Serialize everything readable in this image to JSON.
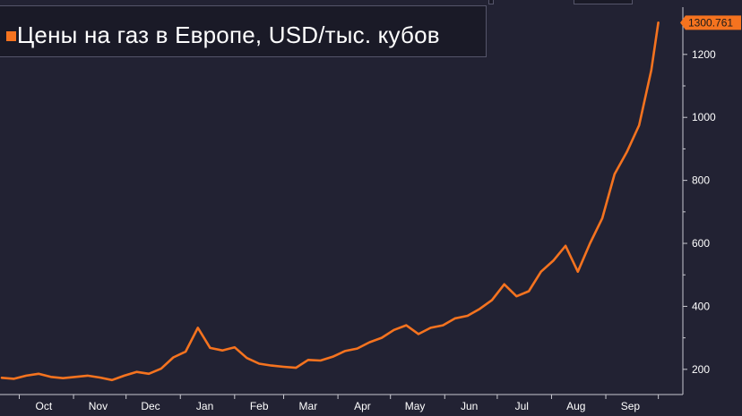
{
  "colors": {
    "background": "#222233",
    "series": "#f5731f",
    "axis": "#c8c8d0",
    "tick_text": "#ffffff",
    "last_label_bg": "#f5731f",
    "last_label_text": "#1a1a1a"
  },
  "chart_data": {
    "type": "line",
    "title": "",
    "legend": {
      "placement": "top-left",
      "entries": [
        "Цены на газ в Европе, USD/тыс. кубов"
      ]
    },
    "series": [
      {
        "name": "Цены на газ в Европе, USD/тыс. кубов",
        "color": "#f5731f",
        "points": [
          [
            "2020-09-21",
            173
          ],
          [
            "2020-09-28",
            170
          ],
          [
            "2020-10-05",
            180
          ],
          [
            "2020-10-12",
            186
          ],
          [
            "2020-10-19",
            176
          ],
          [
            "2020-10-26",
            172
          ],
          [
            "2020-11-02",
            176
          ],
          [
            "2020-11-09",
            180
          ],
          [
            "2020-11-16",
            174
          ],
          [
            "2020-11-23",
            166
          ],
          [
            "2020-11-30",
            180
          ],
          [
            "2020-12-07",
            192
          ],
          [
            "2020-12-14",
            186
          ],
          [
            "2020-12-21",
            202
          ],
          [
            "2020-12-28",
            238
          ],
          [
            "2021-01-04",
            256
          ],
          [
            "2021-01-11",
            332
          ],
          [
            "2021-01-18",
            268
          ],
          [
            "2021-01-25",
            260
          ],
          [
            "2021-02-01",
            270
          ],
          [
            "2021-02-08",
            236
          ],
          [
            "2021-02-15",
            218
          ],
          [
            "2021-02-22",
            212
          ],
          [
            "2021-03-01",
            208
          ],
          [
            "2021-03-08",
            205
          ],
          [
            "2021-03-15",
            230
          ],
          [
            "2021-03-22",
            228
          ],
          [
            "2021-03-29",
            240
          ],
          [
            "2021-04-05",
            258
          ],
          [
            "2021-04-12",
            266
          ],
          [
            "2021-04-19",
            286
          ],
          [
            "2021-04-26",
            300
          ],
          [
            "2021-05-03",
            325
          ],
          [
            "2021-05-10",
            340
          ],
          [
            "2021-05-17",
            312
          ],
          [
            "2021-05-24",
            332
          ],
          [
            "2021-05-31",
            340
          ],
          [
            "2021-06-07",
            362
          ],
          [
            "2021-06-14",
            370
          ],
          [
            "2021-06-21",
            392
          ],
          [
            "2021-06-28",
            420
          ],
          [
            "2021-07-05",
            470
          ],
          [
            "2021-07-12",
            432
          ],
          [
            "2021-07-19",
            448
          ],
          [
            "2021-07-26",
            510
          ],
          [
            "2021-08-02",
            545
          ],
          [
            "2021-08-09",
            592
          ],
          [
            "2021-08-16",
            510
          ],
          [
            "2021-08-23",
            600
          ],
          [
            "2021-08-30",
            680
          ],
          [
            "2021-09-06",
            820
          ],
          [
            "2021-09-13",
            890
          ],
          [
            "2021-09-20",
            975
          ],
          [
            "2021-09-27",
            1150
          ],
          [
            "2021-10-01",
            1300.761
          ]
        ]
      }
    ],
    "last_value_label": "1300.761",
    "x_axis": {
      "type": "date",
      "range": [
        "2020-09-20",
        "2021-10-15"
      ],
      "tick_labels": [
        [
          "2020-10-15",
          "Oct"
        ],
        [
          "2020-11-15",
          "Nov"
        ],
        [
          "2020-12-15",
          "Dec"
        ],
        [
          "2021-01-15",
          "Jan"
        ],
        [
          "2021-02-15",
          "Feb"
        ],
        [
          "2021-03-15",
          "Mar"
        ],
        [
          "2021-04-15",
          "Apr"
        ],
        [
          "2021-05-15",
          "May"
        ],
        [
          "2021-06-15",
          "Jun"
        ],
        [
          "2021-07-15",
          "Jul"
        ],
        [
          "2021-08-15",
          "Aug"
        ],
        [
          "2021-09-15",
          "Sep"
        ]
      ]
    },
    "y_axis": {
      "position": "right",
      "range": [
        120,
        1350
      ],
      "tick_labels": [
        200,
        400,
        600,
        800,
        1000,
        1200
      ]
    },
    "grid": false
  }
}
